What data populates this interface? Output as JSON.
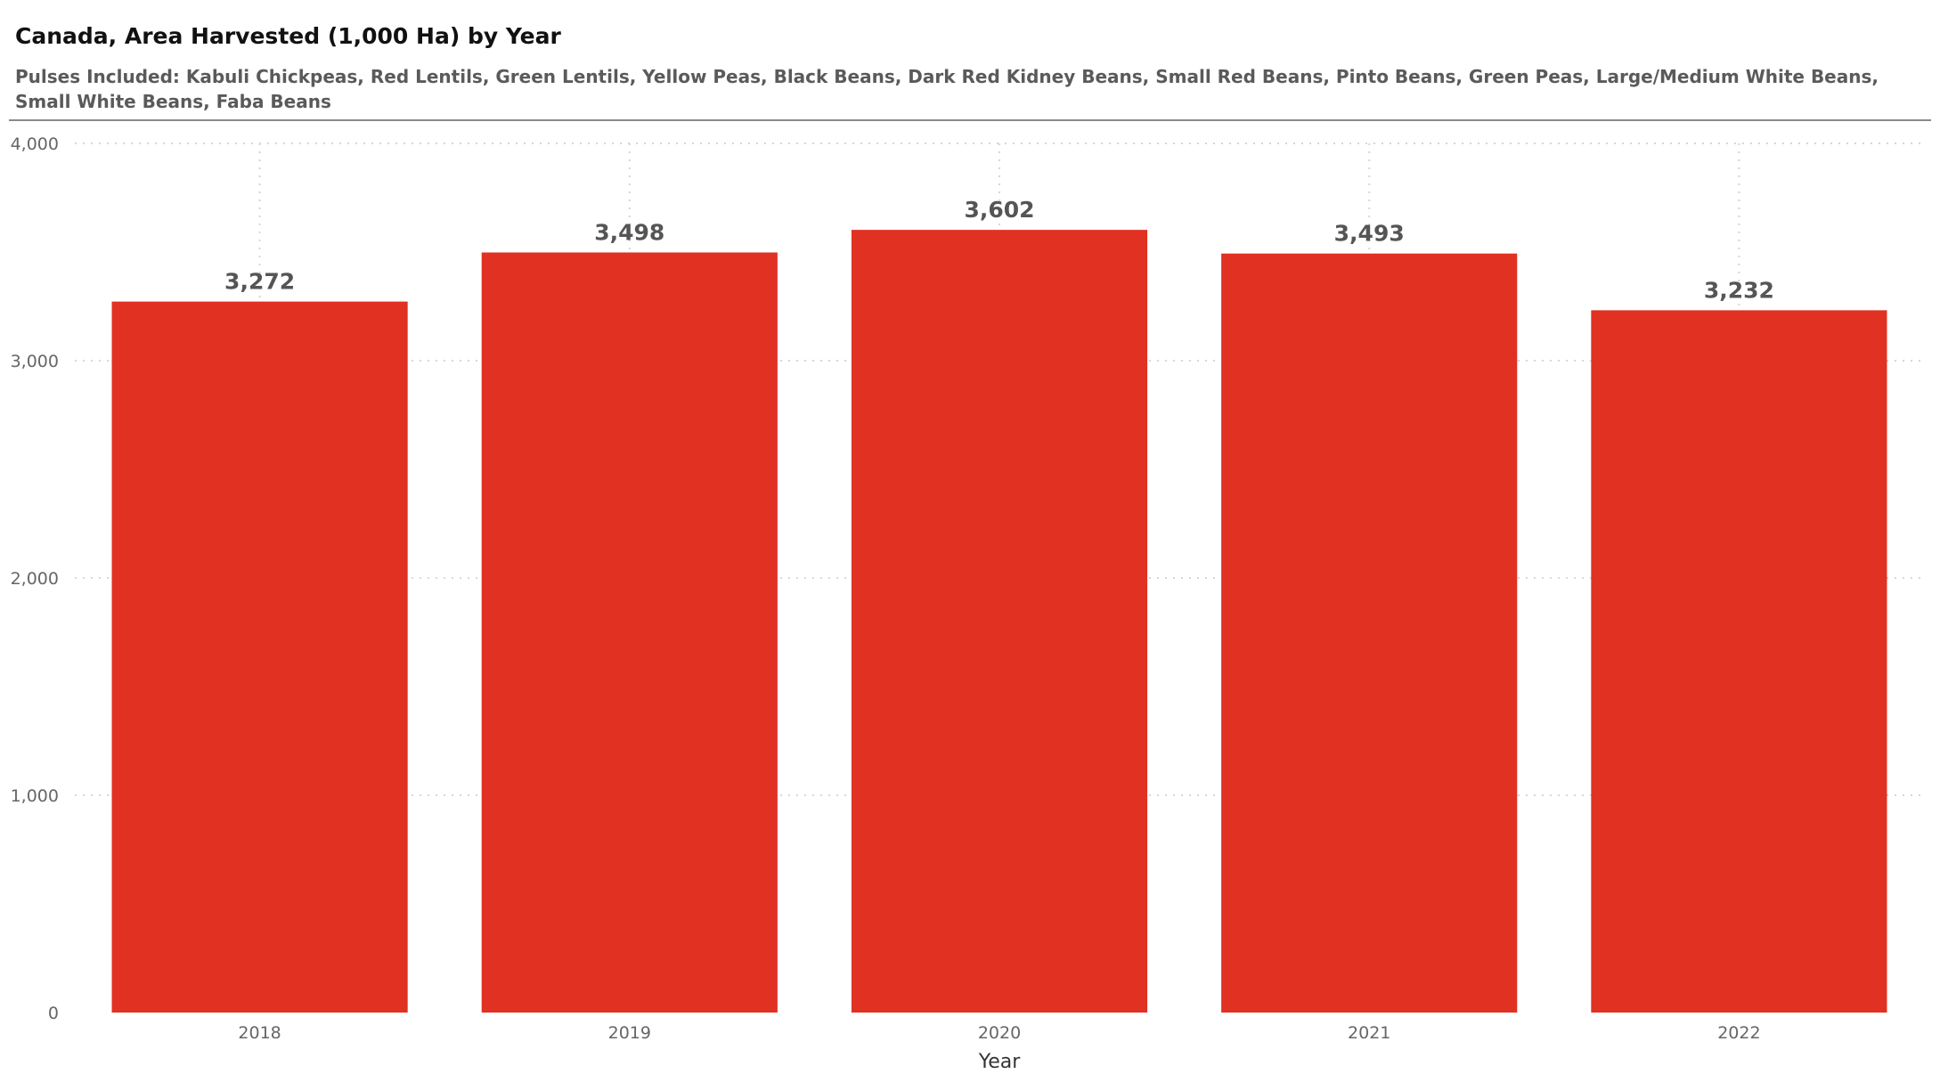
{
  "chart_data": {
    "type": "bar",
    "title": "Canada, Area Harvested (1,000 Ha) by Year",
    "subtitle": "Pulses Included: Kabuli Chickpeas, Red Lentils, Green Lentils, Yellow Peas, Black Beans, Dark Red Kidney Beans, Small Red Beans, Pinto Beans, Green Peas, Large/Medium White Beans, Small White Beans, Faba Beans",
    "xlabel": "Year",
    "ylabel": "",
    "categories": [
      "2018",
      "2019",
      "2020",
      "2021",
      "2022"
    ],
    "values": [
      3272,
      3498,
      3602,
      3493,
      3232
    ],
    "data_labels": [
      "3,272",
      "3,498",
      "3,602",
      "3,493",
      "3,232"
    ],
    "ylim": [
      0,
      4000
    ],
    "y_ticks": [
      0,
      1000,
      2000,
      3000,
      4000
    ],
    "y_tick_labels": [
      "0",
      "1,000",
      "2,000",
      "3,000",
      "4,000"
    ],
    "grid": true,
    "legend": "none",
    "bar_color": "#e03123"
  }
}
